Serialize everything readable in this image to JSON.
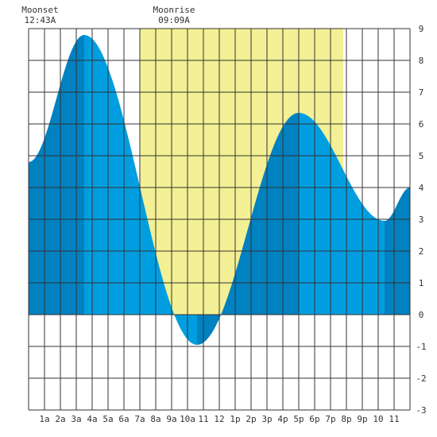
{
  "moonset": {
    "label": "Moonset",
    "time": "12:43A",
    "hour": 0.72
  },
  "moonrise": {
    "label": "Moonrise",
    "time": "09:09A",
    "hour": 9.15
  },
  "chart_data": {
    "type": "area",
    "title": "",
    "xlabel": "",
    "ylabel": "",
    "xlim": [
      0,
      24
    ],
    "ylim": [
      -3,
      9
    ],
    "grid": true,
    "x_ticks": [
      {
        "hour": 1,
        "label": "1a"
      },
      {
        "hour": 2,
        "label": "2a"
      },
      {
        "hour": 3,
        "label": "3a"
      },
      {
        "hour": 4,
        "label": "4a"
      },
      {
        "hour": 5,
        "label": "5a"
      },
      {
        "hour": 6,
        "label": "6a"
      },
      {
        "hour": 7,
        "label": "7a"
      },
      {
        "hour": 8,
        "label": "8a"
      },
      {
        "hour": 9,
        "label": "9a"
      },
      {
        "hour": 10,
        "label": "10a"
      },
      {
        "hour": 11,
        "label": "11"
      },
      {
        "hour": 12,
        "label": "12"
      },
      {
        "hour": 13,
        "label": "1p"
      },
      {
        "hour": 14,
        "label": "2p"
      },
      {
        "hour": 15,
        "label": "3p"
      },
      {
        "hour": 16,
        "label": "4p"
      },
      {
        "hour": 17,
        "label": "5p"
      },
      {
        "hour": 18,
        "label": "6p"
      },
      {
        "hour": 19,
        "label": "7p"
      },
      {
        "hour": 20,
        "label": "8p"
      },
      {
        "hour": 21,
        "label": "9p"
      },
      {
        "hour": 22,
        "label": "10"
      },
      {
        "hour": 23,
        "label": "11"
      }
    ],
    "y_ticks": [
      -3,
      -2,
      -1,
      0,
      1,
      2,
      3,
      4,
      5,
      6,
      7,
      8,
      9
    ],
    "daylight": {
      "start_hour": 7.0,
      "end_hour": 19.8
    },
    "extremes": [
      {
        "hour": 0.0,
        "height": 4.8
      },
      {
        "hour": 3.5,
        "height": 8.8
      },
      {
        "hour": 10.6,
        "height": -0.95
      },
      {
        "hour": 17.0,
        "height": 6.35
      },
      {
        "hour": 22.4,
        "height": 2.95
      },
      {
        "hour": 24.0,
        "height": 4.0
      }
    ],
    "colors": {
      "water": "#009ee0",
      "water_dark": "#0081c0",
      "daylight": "#f3f095",
      "grid": "#333333",
      "background": "#ffffff"
    }
  }
}
